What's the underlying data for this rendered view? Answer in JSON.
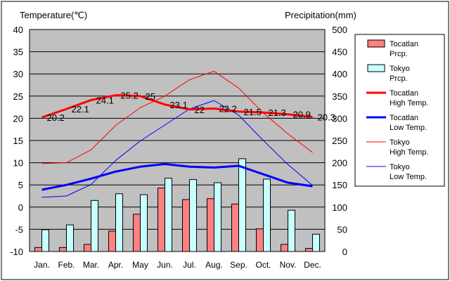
{
  "chart_data": {
    "type": "bar+line",
    "left_axis_title": "Temperature(℃)",
    "right_axis_title": "Precipitation(mm)",
    "temp_range": [
      -10,
      40
    ],
    "temp_ticks": [
      40,
      35,
      30,
      25,
      20,
      15,
      10,
      5,
      0,
      -5,
      -10
    ],
    "precip_range": [
      0,
      500
    ],
    "precip_ticks": [
      500,
      450,
      400,
      350,
      300,
      250,
      200,
      150,
      100,
      50,
      0
    ],
    "months": [
      "Jan.",
      "Feb.",
      "Mar.",
      "Apr.",
      "May",
      "Jun.",
      "Jul.",
      "Aug.",
      "Sep.",
      "Oct.",
      "Nov.",
      "Dec."
    ],
    "grid": true,
    "legend_position": "right",
    "series": [
      {
        "key": "tocatlan_prcp",
        "kind": "bar",
        "color": "#ff8080",
        "legend": [
          "Tocatlan",
          "Prcp."
        ],
        "values": [
          9,
          9,
          16,
          46,
          84,
          143,
          117,
          119,
          107,
          51,
          16,
          7
        ]
      },
      {
        "key": "tokyo_prcp",
        "kind": "bar",
        "color": "#c8ffff",
        "legend": [
          "Tokyo",
          "Prcp."
        ],
        "values": [
          49,
          60,
          115,
          130,
          128,
          165,
          162,
          155,
          209,
          163,
          93,
          39
        ]
      },
      {
        "key": "tocatlan_high",
        "kind": "line",
        "color": "#ff0000",
        "width": 3,
        "legend": [
          "Tocatlan",
          "High Temp."
        ],
        "values": [
          20.2,
          22.1,
          24.1,
          25.2,
          25.0,
          23.1,
          22.0,
          22.2,
          21.5,
          21.3,
          20.9,
          20.3
        ],
        "labels": [
          "20.2",
          "22.1",
          "24.1",
          "25.2",
          "25",
          "23.1",
          "22",
          "22.2",
          "21.5",
          "21.3",
          "20.9",
          "20.3"
        ]
      },
      {
        "key": "tocatlan_low",
        "kind": "line",
        "color": "#0000ff",
        "width": 3,
        "legend": [
          "Tocatlan",
          "Low Temp."
        ],
        "values": [
          3.9,
          5.0,
          6.4,
          8.0,
          9.1,
          9.7,
          9.1,
          8.9,
          9.3,
          7.4,
          5.5,
          4.7
        ]
      },
      {
        "key": "tokyo_high",
        "kind": "line",
        "color": "#ff0000",
        "width": 1,
        "legend": [
          "Tokyo",
          "High Temp."
        ],
        "values": [
          9.8,
          10.0,
          12.9,
          18.4,
          22.4,
          25.0,
          28.7,
          30.6,
          26.8,
          21.2,
          16.5,
          12.3
        ]
      },
      {
        "key": "tokyo_low",
        "kind": "line",
        "color": "#0000ff",
        "width": 1,
        "legend": [
          "Tokyo",
          "Low Temp."
        ],
        "values": [
          2.2,
          2.5,
          5.1,
          10.5,
          14.9,
          18.5,
          22.1,
          24.0,
          20.7,
          15.0,
          9.6,
          4.9
        ]
      }
    ]
  }
}
